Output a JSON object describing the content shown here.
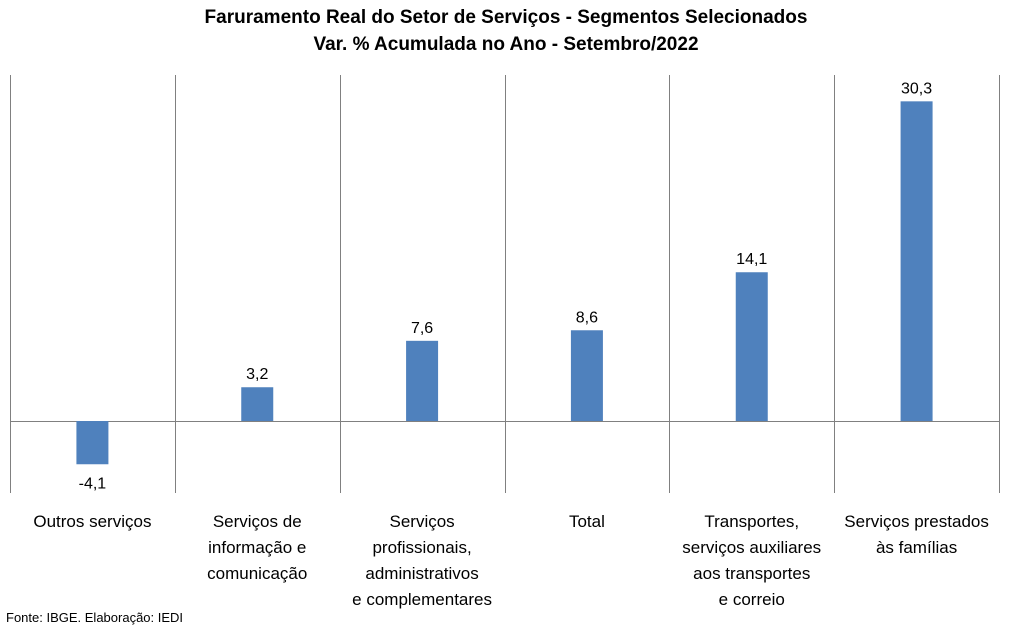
{
  "title": "Faruramento Real do Setor de Serviços - Segmentos Selecionados",
  "subtitle": "Var. % Acumulada no Ano - Setembro/2022",
  "source": "Fonte: IBGE. Elaboração: IEDI",
  "colors": {
    "bar": "#4f81bd",
    "grid": "#808080",
    "axis": "#808080"
  },
  "chart_data": {
    "type": "bar",
    "categories": [
      "Outros serviços",
      "Serviços de informação e comunicação",
      "Serviços profissionais, administrativos e complementares",
      "Total",
      "Transportes, serviços auxiliares aos transportes e correio",
      "Serviços prestados às famílias"
    ],
    "category_lines": [
      [
        "Outros serviços"
      ],
      [
        "Serviços de",
        "informação e",
        "comunicação"
      ],
      [
        "Serviços",
        "profissionais,",
        "administrativos",
        "e complementares"
      ],
      [
        "Total"
      ],
      [
        "Transportes,",
        "serviços auxiliares",
        "aos transportes",
        "e correio"
      ],
      [
        "Serviços prestados",
        "às famílias"
      ]
    ],
    "values": [
      -4.1,
      3.2,
      7.6,
      8.6,
      14.1,
      30.3
    ],
    "value_labels": [
      "-4,1",
      "3,2",
      "7,6",
      "8,6",
      "14,1",
      "30,3"
    ],
    "ylim": [
      -7.0,
      33.0
    ],
    "grid": "vertical category separators",
    "legend": "none"
  }
}
